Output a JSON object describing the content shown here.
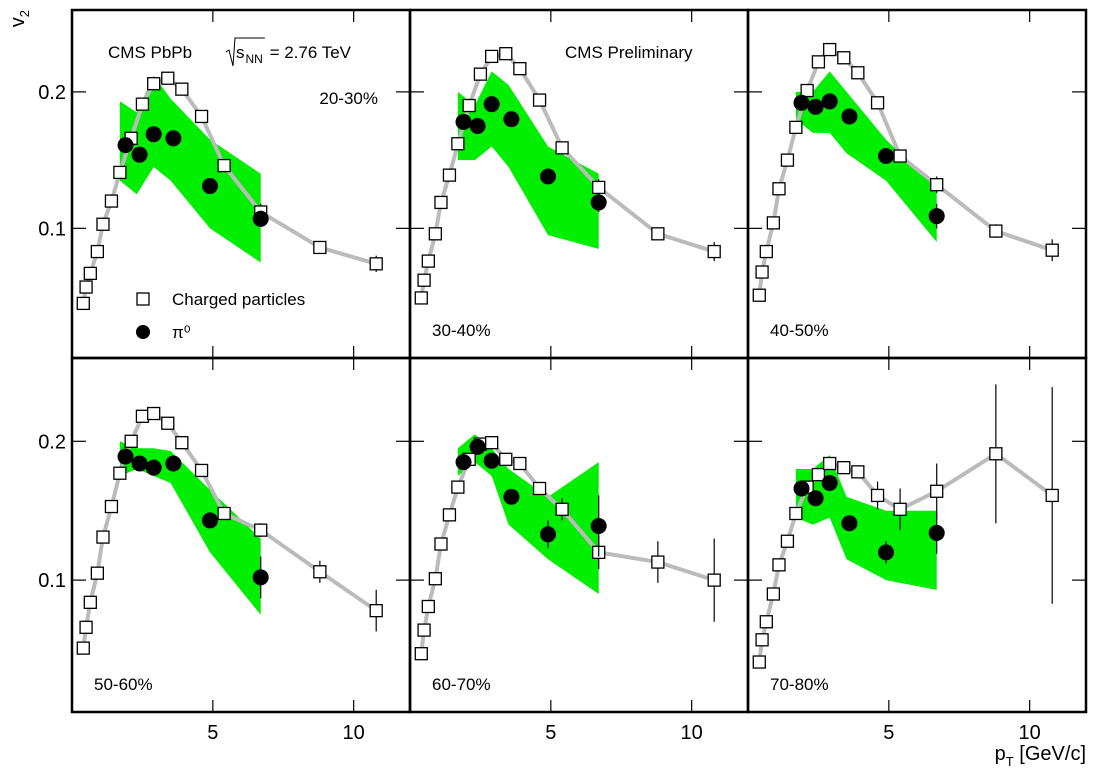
{
  "chart_data": [
    {
      "type": "scatter",
      "label": "20-30%",
      "title": "CMS PbPb",
      "energy": [
        "s",
        "NN",
        " = 2.76 TeV"
      ],
      "ylabel": [
        "v",
        "2"
      ],
      "xlim": [
        0,
        12
      ],
      "ylim": [
        0.005,
        0.26
      ],
      "xticks": [
        5,
        10
      ],
      "yticks": [
        0.1,
        0.2
      ],
      "legend": "lower-left",
      "band": {
        "color": "#00ee00",
        "x": [
          1.7,
          2.3,
          2.9,
          3.5,
          4.9,
          6.7
        ],
        "low": [
          0.135,
          0.125,
          0.145,
          0.135,
          0.1,
          0.075
        ],
        "high": [
          0.193,
          0.185,
          0.212,
          0.195,
          0.165,
          0.14
        ]
      },
      "series": [
        {
          "name": "Charged particles",
          "color": "#000000",
          "line_color": "#bbbbbb",
          "x": [
            0.4,
            0.5,
            0.65,
            0.9,
            1.1,
            1.4,
            1.7,
            2.1,
            2.5,
            2.9,
            3.4,
            3.9,
            4.6,
            5.4,
            6.7,
            8.8,
            10.8
          ],
          "values": [
            0.045,
            0.057,
            0.067,
            0.083,
            0.103,
            0.12,
            0.141,
            0.166,
            0.191,
            0.206,
            0.21,
            0.202,
            0.182,
            0.146,
            0.112,
            0.086,
            0.074
          ],
          "errors": [
            null,
            null,
            null,
            null,
            null,
            null,
            null,
            null,
            null,
            null,
            null,
            null,
            null,
            null,
            0.006,
            0.004,
            0.006
          ]
        },
        {
          "name": "π⁰",
          "color": "#000000",
          "x": [
            1.9,
            2.4,
            2.9,
            3.6,
            4.9,
            6.7
          ],
          "values": [
            0.161,
            0.154,
            0.169,
            0.166,
            0.131,
            0.107
          ],
          "errors": [
            null,
            null,
            null,
            null,
            null,
            0.006
          ]
        }
      ]
    },
    {
      "type": "scatter",
      "label": "30-40%",
      "subtitle": "CMS Preliminary",
      "xlim": [
        0,
        12
      ],
      "ylim": [
        0.005,
        0.26
      ],
      "xticks": [
        5,
        10
      ],
      "yticks": [
        0.1,
        0.2
      ],
      "band": {
        "color": "#00ee00",
        "x": [
          1.7,
          2.3,
          2.9,
          3.5,
          4.9,
          6.7
        ],
        "low": [
          0.15,
          0.15,
          0.16,
          0.145,
          0.095,
          0.085
        ],
        "high": [
          0.2,
          0.19,
          0.215,
          0.205,
          0.16,
          0.14
        ]
      },
      "series": [
        {
          "name": "Charged particles",
          "color": "#000000",
          "line_color": "#bbbbbb",
          "x": [
            0.4,
            0.5,
            0.65,
            0.9,
            1.1,
            1.4,
            1.7,
            2.1,
            2.5,
            2.9,
            3.4,
            3.9,
            4.6,
            5.4,
            6.7,
            8.8,
            10.8
          ],
          "values": [
            0.049,
            0.062,
            0.076,
            0.096,
            0.119,
            0.139,
            0.162,
            0.19,
            0.213,
            0.226,
            0.228,
            0.217,
            0.194,
            0.159,
            0.13,
            0.096,
            0.083
          ],
          "errors": [
            null,
            null,
            null,
            null,
            null,
            null,
            null,
            null,
            null,
            null,
            null,
            null,
            null,
            null,
            0.006,
            0.004,
            0.007
          ]
        },
        {
          "name": "π⁰",
          "color": "#000000",
          "x": [
            1.9,
            2.4,
            2.9,
            3.6,
            4.9,
            6.7
          ],
          "values": [
            0.178,
            0.175,
            0.191,
            0.18,
            0.138,
            0.119
          ],
          "errors": [
            null,
            null,
            null,
            null,
            null,
            0.007
          ]
        }
      ]
    },
    {
      "type": "scatter",
      "label": "40-50%",
      "xlim": [
        0,
        12
      ],
      "ylim": [
        0.005,
        0.26
      ],
      "xticks": [
        5,
        10
      ],
      "yticks": [
        0.1,
        0.2
      ],
      "band": {
        "color": "#00ee00",
        "x": [
          1.7,
          2.3,
          2.9,
          3.5,
          4.9,
          6.7
        ],
        "low": [
          0.18,
          0.17,
          0.17,
          0.155,
          0.135,
          0.09
        ],
        "high": [
          0.2,
          0.2,
          0.215,
          0.2,
          0.165,
          0.13
        ]
      },
      "series": [
        {
          "name": "Charged particles",
          "color": "#000000",
          "line_color": "#bbbbbb",
          "x": [
            0.4,
            0.5,
            0.65,
            0.9,
            1.1,
            1.4,
            1.7,
            2.1,
            2.5,
            2.9,
            3.4,
            3.9,
            4.6,
            5.4,
            6.7,
            8.8,
            10.8
          ],
          "values": [
            0.051,
            0.068,
            0.083,
            0.104,
            0.129,
            0.15,
            0.174,
            0.201,
            0.222,
            0.231,
            0.225,
            0.214,
            0.192,
            0.153,
            0.132,
            0.098,
            0.084
          ],
          "errors": [
            null,
            null,
            null,
            null,
            null,
            null,
            null,
            null,
            null,
            null,
            null,
            null,
            null,
            null,
            0.006,
            0.005,
            0.008
          ]
        },
        {
          "name": "π⁰",
          "color": "#000000",
          "x": [
            1.9,
            2.4,
            2.9,
            3.6,
            4.9,
            6.7
          ],
          "values": [
            0.192,
            0.189,
            0.193,
            0.182,
            0.153,
            0.109
          ],
          "errors": [
            null,
            null,
            null,
            null,
            null,
            0.009
          ]
        }
      ]
    },
    {
      "type": "scatter",
      "label": "50-60%",
      "xlim": [
        0,
        12
      ],
      "ylim": [
        0.005,
        0.26
      ],
      "xticks": [
        5,
        10
      ],
      "yticks": [
        0.1,
        0.2
      ],
      "band": {
        "color": "#00ee00",
        "x": [
          1.7,
          2.3,
          2.9,
          3.5,
          4.9,
          6.7
        ],
        "low": [
          0.175,
          0.18,
          0.175,
          0.17,
          0.12,
          0.075
        ],
        "high": [
          0.2,
          0.195,
          0.195,
          0.193,
          0.165,
          0.13
        ]
      },
      "series": [
        {
          "name": "Charged particles",
          "color": "#000000",
          "line_color": "#bbbbbb",
          "x": [
            0.4,
            0.5,
            0.65,
            0.9,
            1.1,
            1.4,
            1.7,
            2.1,
            2.5,
            2.9,
            3.4,
            3.9,
            4.6,
            5.4,
            6.7,
            8.8,
            10.8
          ],
          "values": [
            0.051,
            0.066,
            0.084,
            0.105,
            0.131,
            0.153,
            0.177,
            0.2,
            0.218,
            0.22,
            0.213,
            0.199,
            0.179,
            0.148,
            0.136,
            0.106,
            0.078
          ],
          "errors": [
            null,
            null,
            null,
            null,
            null,
            null,
            null,
            null,
            null,
            null,
            null,
            null,
            null,
            null,
            0.005,
            0.008,
            0.015
          ]
        },
        {
          "name": "π⁰",
          "color": "#000000",
          "x": [
            1.9,
            2.4,
            2.9,
            3.6,
            4.9,
            6.7
          ],
          "values": [
            0.189,
            0.184,
            0.181,
            0.184,
            0.143,
            0.102
          ],
          "errors": [
            null,
            null,
            null,
            null,
            null,
            0.015
          ]
        }
      ]
    },
    {
      "type": "scatter",
      "label": "60-70%",
      "xlim": [
        0,
        12
      ],
      "ylim": [
        0.005,
        0.26
      ],
      "xticks": [
        5,
        10
      ],
      "yticks": [
        0.1,
        0.2
      ],
      "band": {
        "color": "#00ee00",
        "x": [
          1.7,
          2.3,
          2.9,
          3.5,
          4.9,
          6.7
        ],
        "low": [
          0.175,
          0.185,
          0.175,
          0.14,
          0.115,
          0.09
        ],
        "high": [
          0.195,
          0.205,
          0.195,
          0.18,
          0.16,
          0.185
        ]
      },
      "series": [
        {
          "name": "Charged particles",
          "color": "#000000",
          "line_color": "#bbbbbb",
          "x": [
            0.4,
            0.5,
            0.65,
            0.9,
            1.1,
            1.4,
            1.7,
            2.1,
            2.5,
            2.9,
            3.4,
            3.9,
            4.6,
            5.4,
            6.7,
            8.8,
            10.8
          ],
          "values": [
            0.047,
            0.064,
            0.081,
            0.101,
            0.126,
            0.147,
            0.167,
            0.187,
            0.198,
            0.199,
            0.187,
            0.184,
            0.166,
            0.151,
            0.12,
            0.113,
            0.1
          ],
          "errors": [
            null,
            null,
            null,
            null,
            null,
            null,
            null,
            null,
            null,
            null,
            null,
            null,
            null,
            0.008,
            0.012,
            0.015,
            0.03
          ]
        },
        {
          "name": "π⁰",
          "color": "#000000",
          "x": [
            1.9,
            2.4,
            2.9,
            3.6,
            4.9,
            6.7
          ],
          "values": [
            0.185,
            0.196,
            0.186,
            0.16,
            0.133,
            0.139
          ],
          "errors": [
            null,
            null,
            null,
            null,
            0.01,
            0.022
          ]
        }
      ]
    },
    {
      "type": "scatter",
      "label": "70-80%",
      "xlabel": [
        "p",
        "T",
        " [GeV/c]"
      ],
      "xlim": [
        0,
        12
      ],
      "ylim": [
        0.005,
        0.26
      ],
      "xticks": [
        5,
        10
      ],
      "yticks": [
        0.1,
        0.2
      ],
      "band": {
        "color": "#00ee00",
        "x": [
          1.7,
          2.3,
          2.9,
          3.5,
          4.9,
          6.7
        ],
        "low": [
          0.145,
          0.14,
          0.145,
          0.115,
          0.1,
          0.093
        ],
        "high": [
          0.18,
          0.18,
          0.19,
          0.16,
          0.15,
          0.15
        ]
      },
      "series": [
        {
          "name": "Charged particles",
          "color": "#000000",
          "line_color": "#bbbbbb",
          "x": [
            0.4,
            0.5,
            0.65,
            0.9,
            1.1,
            1.4,
            1.7,
            2.1,
            2.5,
            2.9,
            3.4,
            3.9,
            4.6,
            5.4,
            6.7,
            8.8,
            10.8
          ],
          "values": [
            0.041,
            0.057,
            0.07,
            0.09,
            0.111,
            0.128,
            0.148,
            0.167,
            0.176,
            0.184,
            0.181,
            0.178,
            0.161,
            0.151,
            0.164,
            0.191,
            0.161
          ],
          "errors": [
            null,
            null,
            null,
            null,
            null,
            null,
            null,
            null,
            null,
            null,
            null,
            null,
            0.01,
            0.015,
            0.02,
            0.05,
            0.078
          ]
        },
        {
          "name": "π⁰",
          "color": "#000000",
          "x": [
            1.9,
            2.4,
            2.9,
            3.6,
            4.9,
            6.7
          ],
          "values": [
            0.166,
            0.159,
            0.17,
            0.141,
            0.12,
            0.134
          ],
          "errors": [
            null,
            null,
            null,
            null,
            0.008,
            0.015
          ]
        }
      ]
    }
  ]
}
